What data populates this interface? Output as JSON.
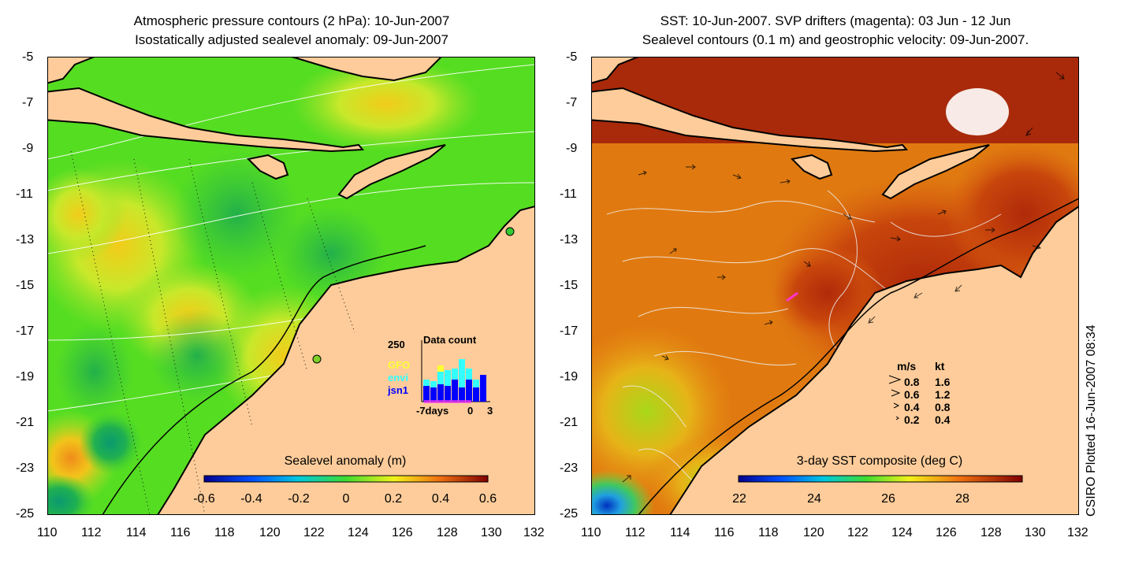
{
  "left_panel": {
    "title_line1": "Atmospheric pressure contours (2 hPa): 10-Jun-2007",
    "title_line2": "Isostatically adjusted sealevel anomaly: 09-Jun-2007",
    "colorbar_label": "Sealevel anomaly (m)",
    "colorbar_ticks": [
      "-0.6",
      "-0.4",
      "-0.2",
      "0",
      "0.2",
      "0.4",
      "0.6"
    ],
    "inset": {
      "y_max_label": "250",
      "title": "Data count",
      "legend": [
        {
          "name": "GFO",
          "color": "#ffff33"
        },
        {
          "name": "envi",
          "color": "#33ffff"
        },
        {
          "name": "jsn1",
          "color": "#0000ff"
        }
      ],
      "x_labels": [
        "-7days",
        "0",
        "3"
      ]
    }
  },
  "right_panel": {
    "title_line1": "SST: 10-Jun-2007. SVP drifters (magenta): 03 Jun - 12 Jun",
    "title_line2": "Sealevel contours (0.1 m) and geostrophic velocity: 09-Jun-2007.",
    "colorbar_label": "3-day SST composite (deg C)",
    "colorbar_ticks": [
      "22",
      "24",
      "26",
      "28"
    ],
    "speed_legend": {
      "header_ms": "m/s",
      "header_kt": "kt",
      "rows": [
        {
          "ms": "0.8",
          "kt": "1.6"
        },
        {
          "ms": "0.6",
          "kt": "1.2"
        },
        {
          "ms": "0.4",
          "kt": "0.8"
        },
        {
          "ms": "0.2",
          "kt": "0.4"
        }
      ]
    }
  },
  "y_ticks": [
    "-5",
    "-7",
    "-9",
    "-11",
    "-13",
    "-15",
    "-17",
    "-19",
    "-21",
    "-23",
    "-25"
  ],
  "x_ticks": [
    "110",
    "112",
    "114",
    "116",
    "118",
    "120",
    "122",
    "124",
    "126",
    "128",
    "130",
    "132"
  ],
  "credit": "CSIRO Plotted 16-Jun-2007 08:34",
  "colors": {
    "land": "#fdcc9a",
    "ocean_left": "#55dd22",
    "ocean_right": "#e07a10"
  }
}
